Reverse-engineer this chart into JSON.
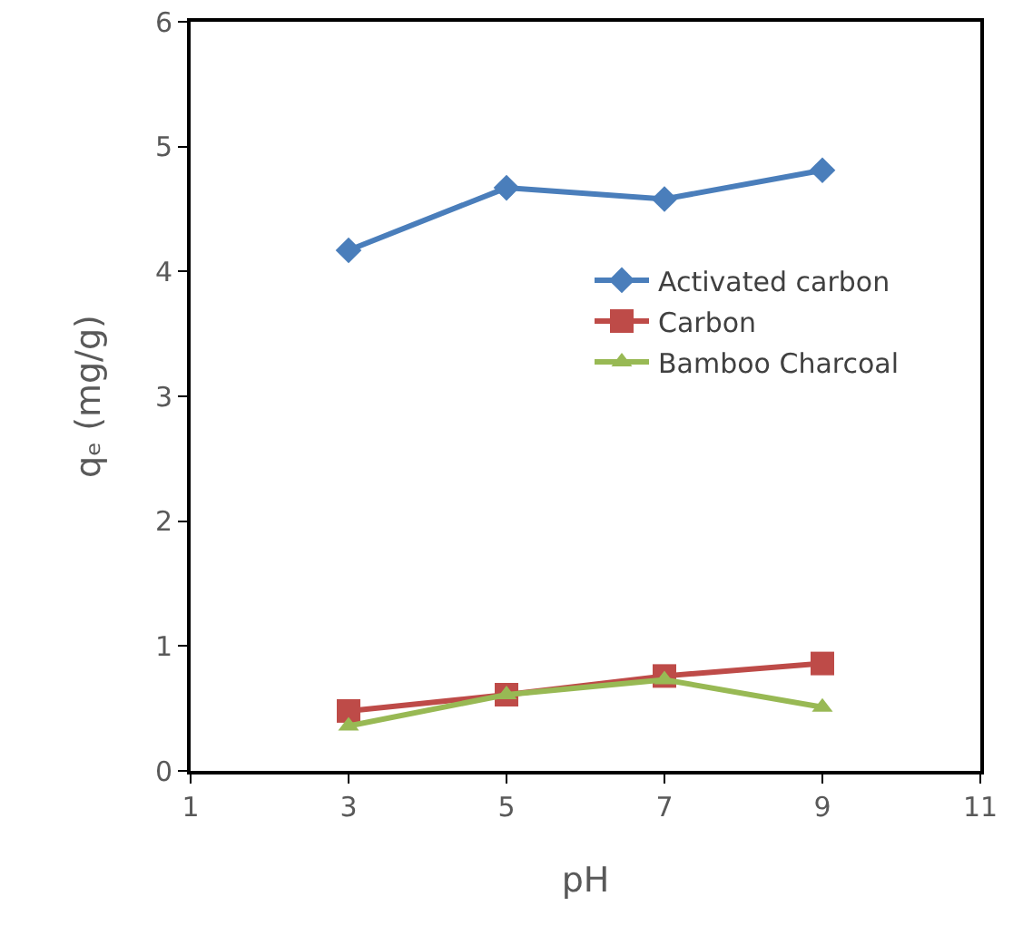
{
  "chart_data": {
    "type": "line",
    "xlabel": "pH",
    "ylabel": "qₑ (mg/g)",
    "x": [
      3,
      5,
      7,
      9
    ],
    "xlim": [
      1,
      11
    ],
    "xticks": [
      1,
      3,
      5,
      7,
      9,
      11
    ],
    "ylim": [
      0,
      6
    ],
    "yticks": [
      0,
      1,
      2,
      3,
      4,
      5,
      6
    ],
    "grid": false,
    "legend": "right",
    "line_style": "solid",
    "series": [
      {
        "name": "Activated carbon",
        "color": "#4a7ebb",
        "marker": "diamond",
        "values": [
          4.17,
          4.67,
          4.58,
          4.81
        ]
      },
      {
        "name": "Carbon",
        "color": "#be4b48",
        "marker": "square",
        "values": [
          0.48,
          0.61,
          0.76,
          0.86
        ]
      },
      {
        "name": "Bamboo Charcoal",
        "color": "#98b954",
        "marker": "triangle",
        "values": [
          0.36,
          0.61,
          0.73,
          0.51
        ]
      }
    ]
  }
}
